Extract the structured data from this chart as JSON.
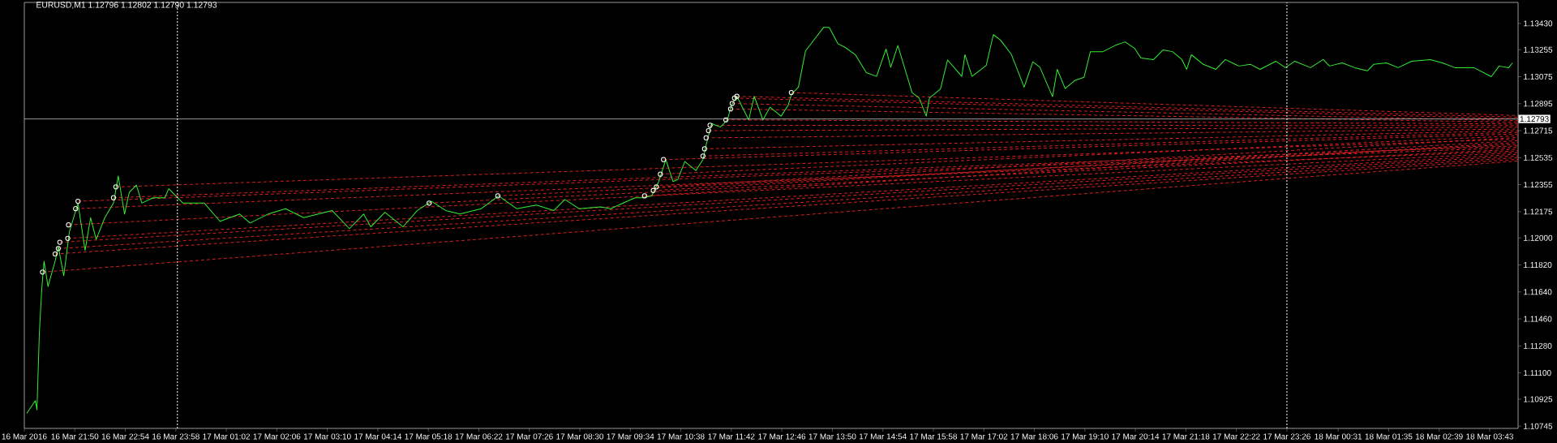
{
  "chart_data": {
    "type": "line",
    "title": "EURUSD,M1  1.12796 1.12802 1.12790 1.12793",
    "xlim": [
      "2016-03-16T20:46",
      "2016-03-18T04:19"
    ],
    "ylim": [
      1.1073,
      1.1357
    ],
    "xticks": [
      {
        "value": "2016-03-16T20:46",
        "label": "16 Mar 2016"
      },
      {
        "value": "2016-03-16T21:50",
        "label": "16 Mar 21:50"
      },
      {
        "value": "2016-03-16T22:54",
        "label": "16 Mar 22:54"
      },
      {
        "value": "2016-03-16T23:58",
        "label": "16 Mar 23:58"
      },
      {
        "value": "2016-03-17T01:02",
        "label": "17 Mar 01:02"
      },
      {
        "value": "2016-03-17T02:06",
        "label": "17 Mar 02:06"
      },
      {
        "value": "2016-03-17T03:10",
        "label": "17 Mar 03:10"
      },
      {
        "value": "2016-03-17T04:14",
        "label": "17 Mar 04:14"
      },
      {
        "value": "2016-03-17T05:18",
        "label": "17 Mar 05:18"
      },
      {
        "value": "2016-03-17T06:22",
        "label": "17 Mar 06:22"
      },
      {
        "value": "2016-03-17T07:26",
        "label": "17 Mar 07:26"
      },
      {
        "value": "2016-03-17T08:30",
        "label": "17 Mar 08:30"
      },
      {
        "value": "2016-03-17T09:34",
        "label": "17 Mar 09:34"
      },
      {
        "value": "2016-03-17T10:38",
        "label": "17 Mar 10:38"
      },
      {
        "value": "2016-03-17T11:42",
        "label": "17 Mar 11:42"
      },
      {
        "value": "2016-03-17T12:46",
        "label": "17 Mar 12:46"
      },
      {
        "value": "2016-03-17T13:50",
        "label": "17 Mar 13:50"
      },
      {
        "value": "2016-03-17T14:54",
        "label": "17 Mar 14:54"
      },
      {
        "value": "2016-03-17T15:58",
        "label": "17 Mar 15:58"
      },
      {
        "value": "2016-03-17T17:02",
        "label": "17 Mar 17:02"
      },
      {
        "value": "2016-03-17T18:06",
        "label": "17 Mar 18:06"
      },
      {
        "value": "2016-03-17T19:10",
        "label": "17 Mar 19:10"
      },
      {
        "value": "2016-03-17T20:14",
        "label": "17 Mar 20:14"
      },
      {
        "value": "2016-03-17T21:18",
        "label": "17 Mar 21:18"
      },
      {
        "value": "2016-03-17T22:22",
        "label": "17 Mar 22:22"
      },
      {
        "value": "2016-03-17T23:26",
        "label": "17 Mar 23:26"
      },
      {
        "value": "2016-03-18T00:31",
        "label": "18 Mar 00:31"
      },
      {
        "value": "2016-03-18T01:35",
        "label": "18 Mar 01:35"
      },
      {
        "value": "2016-03-18T02:39",
        "label": "18 Mar 02:39"
      },
      {
        "value": "2016-03-18T03:43",
        "label": "18 Mar 03:43"
      }
    ],
    "yticks": [
      1.10745,
      1.10925,
      {
        "value": 1.111,
        "label": "1.11100"
      },
      {
        "value": 1.1128,
        "label": "1.11280"
      },
      {
        "value": 1.1146,
        "label": "1.11460"
      },
      {
        "value": 1.1164,
        "label": "1.11640"
      },
      {
        "value": 1.1182,
        "label": "1.11820"
      },
      {
        "value": 1.12,
        "label": "1.12000"
      },
      1.12175,
      1.12355,
      1.12535,
      1.12715,
      1.12895,
      1.13075,
      1.13255,
      {
        "value": 1.1343,
        "label": "1.13430"
      }
    ],
    "marker": "none",
    "line_style": "solid",
    "ref_lines": [
      {
        "axis": "y",
        "value": 1.12793,
        "label": "1.12793",
        "color": "#c0c0c0",
        "line_style": "solid"
      },
      {
        "axis": "x",
        "value": "2016-03-17T00:00",
        "color": "#ffffff",
        "line_style": "dotted"
      },
      {
        "axis": "x",
        "value": "2016-03-17T23:26",
        "color": "#ffffff",
        "line_style": "dotted"
      }
    ],
    "series": [
      {
        "color": "#d42020",
        "line_style": "dashed",
        "x": [
          "2016-03-16T21:09",
          "2016-03-18T04:19"
        ],
        "values": [
          1.11772,
          1.12513
        ]
      },
      {
        "color": "#d42020",
        "line_style": "dashed",
        "x": [
          "2016-03-16T21:25",
          "2016-03-18T04:19"
        ],
        "values": [
          1.11893,
          1.12524
        ]
      },
      {
        "color": "#d42020",
        "line_style": "dashed",
        "x": [
          "2016-03-16T21:29",
          "2016-03-18T04:19"
        ],
        "values": [
          1.11929,
          1.12535
        ]
      },
      {
        "color": "#d42020",
        "line_style": "dashed",
        "x": [
          "2016-03-16T21:31",
          "2016-03-18T04:19"
        ],
        "values": [
          1.11971,
          1.12547
        ]
      },
      {
        "color": "#d42020",
        "line_style": "dashed",
        "x": [
          "2016-03-16T21:41",
          "2016-03-18T04:19"
        ],
        "values": [
          1.11997,
          1.12558
        ]
      },
      {
        "color": "#d42020",
        "line_style": "dashed",
        "x": [
          "2016-03-16T21:42",
          "2016-03-18T04:19"
        ],
        "values": [
          1.12087,
          1.12569
        ]
      },
      {
        "color": "#d42020",
        "line_style": "dashed",
        "x": [
          "2016-03-16T21:51",
          "2016-03-18T04:19"
        ],
        "values": [
          1.12195,
          1.1258
        ]
      },
      {
        "color": "#d42020",
        "line_style": "dashed",
        "x": [
          "2016-03-16T21:54",
          "2016-03-18T04:19"
        ],
        "values": [
          1.12244,
          1.12603
        ]
      },
      {
        "color": "#d42020",
        "line_style": "dashed",
        "x": [
          "2016-03-16T22:39",
          "2016-03-18T04:19"
        ],
        "values": [
          1.12268,
          1.12614
        ]
      },
      {
        "color": "#d42020",
        "line_style": "dashed",
        "x": [
          "2016-03-16T22:42",
          "2016-03-18T04:19"
        ],
        "values": [
          1.1234,
          1.12659
        ]
      },
      {
        "color": "#d42020",
        "line_style": "dashed",
        "x": [
          "2016-03-17T05:19",
          "2016-03-18T04:19"
        ],
        "values": [
          1.12232,
          1.12592
        ]
      },
      {
        "color": "#d42020",
        "line_style": "dashed",
        "x": [
          "2016-03-17T06:46",
          "2016-03-18T04:19"
        ],
        "values": [
          1.1228,
          1.12625
        ]
      },
      {
        "color": "#d42020",
        "line_style": "dashed",
        "x": [
          "2016-03-17T09:52",
          "2016-03-18T04:19"
        ],
        "values": [
          1.1228,
          1.12637
        ]
      },
      {
        "color": "#d42020",
        "line_style": "dashed",
        "x": [
          "2016-03-17T10:03",
          "2016-03-18T04:19"
        ],
        "values": [
          1.12316,
          1.12648
        ]
      },
      {
        "color": "#d42020",
        "line_style": "dashed",
        "x": [
          "2016-03-17T10:07",
          "2016-03-18T04:19"
        ],
        "values": [
          1.1234,
          1.1267
        ]
      },
      {
        "color": "#d42020",
        "line_style": "dashed",
        "x": [
          "2016-03-17T10:12",
          "2016-03-18T04:19"
        ],
        "values": [
          1.12425,
          1.12681
        ]
      },
      {
        "color": "#d42020",
        "line_style": "dashed",
        "x": [
          "2016-03-17T10:16",
          "2016-03-18T04:19"
        ],
        "values": [
          1.12522,
          1.12693
        ]
      },
      {
        "color": "#d42020",
        "line_style": "dashed",
        "x": [
          "2016-03-17T11:06",
          "2016-03-18T04:19"
        ],
        "values": [
          1.12546,
          1.12704
        ]
      },
      {
        "color": "#d42020",
        "line_style": "dashed",
        "x": [
          "2016-03-17T11:08",
          "2016-03-18T04:19"
        ],
        "values": [
          1.12594,
          1.12715
        ]
      },
      {
        "color": "#d42020",
        "line_style": "dashed",
        "x": [
          "2016-03-17T11:10",
          "2016-03-18T04:19"
        ],
        "values": [
          1.12667,
          1.12726
        ]
      },
      {
        "color": "#d42020",
        "line_style": "dashed",
        "x": [
          "2016-03-17T11:13",
          "2016-03-18T04:19"
        ],
        "values": [
          1.12715,
          1.12738
        ]
      },
      {
        "color": "#d42020",
        "line_style": "dashed",
        "x": [
          "2016-03-17T11:15",
          "2016-03-18T04:19"
        ],
        "values": [
          1.12751,
          1.12749
        ]
      },
      {
        "color": "#d42020",
        "line_style": "dashed",
        "x": [
          "2016-03-17T11:35",
          "2016-03-18T04:19"
        ],
        "values": [
          1.12787,
          1.1276
        ]
      },
      {
        "color": "#d42020",
        "line_style": "dashed",
        "x": [
          "2016-03-17T11:41",
          "2016-03-18T04:19"
        ],
        "values": [
          1.1286,
          1.12771
        ]
      },
      {
        "color": "#d42020",
        "line_style": "dashed",
        "x": [
          "2016-03-17T11:43",
          "2016-03-18T04:19"
        ],
        "values": [
          1.12896,
          1.12782
        ]
      },
      {
        "color": "#d42020",
        "line_style": "dashed",
        "x": [
          "2016-03-17T11:46",
          "2016-03-18T04:19"
        ],
        "values": [
          1.12932,
          1.12794
        ]
      },
      {
        "color": "#d42020",
        "line_style": "dashed",
        "x": [
          "2016-03-17T11:49",
          "2016-03-18T04:19"
        ],
        "values": [
          1.12944,
          1.12805
        ]
      },
      {
        "color": "#d42020",
        "line_style": "dashed",
        "x": [
          "2016-03-17T12:58",
          "2016-03-18T04:19"
        ],
        "values": [
          1.12969,
          1.12816
        ]
      },
      {
        "color": "#33ee33",
        "x": [
          "2016-03-16T20:49",
          "2016-03-16T21:00",
          "2016-03-16T21:02",
          "2016-03-16T21:05",
          "2016-03-16T21:08",
          "2016-03-16T21:11",
          "2016-03-16T21:16",
          "2016-03-16T21:25",
          "2016-03-16T21:29",
          "2016-03-16T21:36",
          "2016-03-16T21:43",
          "2016-03-16T21:54",
          "2016-03-16T22:03",
          "2016-03-16T22:10",
          "2016-03-16T22:17",
          "2016-03-16T22:28",
          "2016-03-16T22:39",
          "2016-03-16T22:45",
          "2016-03-16T22:53",
          "2016-03-16T22:59",
          "2016-03-16T23:08",
          "2016-03-16T23:15",
          "2016-03-16T23:29",
          "2016-03-16T23:44",
          "2016-03-16T23:49",
          "2016-03-17T00:07",
          "2016-03-17T00:34",
          "2016-03-17T00:54",
          "2016-03-17T01:19",
          "2016-03-17T01:32",
          "2016-03-17T01:55",
          "2016-03-17T02:17",
          "2016-03-17T02:40",
          "2016-03-17T03:16",
          "2016-03-17T03:38",
          "2016-03-17T03:56",
          "2016-03-17T04:05",
          "2016-03-17T04:23",
          "2016-03-17T04:46",
          "2016-03-17T05:04",
          "2016-03-17T05:22",
          "2016-03-17T05:40",
          "2016-03-17T05:58",
          "2016-03-17T06:25",
          "2016-03-17T06:47",
          "2016-03-17T07:10",
          "2016-03-17T07:35",
          "2016-03-17T07:57",
          "2016-03-17T08:11",
          "2016-03-17T08:29",
          "2016-03-17T08:56",
          "2016-03-17T09:09",
          "2016-03-17T09:40",
          "2016-03-17T09:49",
          "2016-03-17T10:01",
          "2016-03-17T10:10",
          "2016-03-17T10:19",
          "2016-03-17T10:28",
          "2016-03-17T10:34",
          "2016-03-17T10:43",
          "2016-03-17T10:57",
          "2016-03-17T11:06",
          "2016-03-17T11:10",
          "2016-03-17T11:17",
          "2016-03-17T11:28",
          "2016-03-17T11:37",
          "2016-03-17T11:42",
          "2016-03-17T11:49",
          "2016-03-17T12:04",
          "2016-03-17T12:11",
          "2016-03-17T12:22",
          "2016-03-17T12:31",
          "2016-03-17T12:45",
          "2016-03-17T12:54",
          "2016-03-17T12:58",
          "2016-03-17T13:07",
          "2016-03-17T13:16",
          "2016-03-17T13:30",
          "2016-03-17T13:39",
          "2016-03-17T13:46",
          "2016-03-17T13:57",
          "2016-03-17T14:06",
          "2016-03-17T14:19",
          "2016-03-17T14:33",
          "2016-03-17T14:46",
          "2016-03-17T14:58",
          "2016-03-17T15:04",
          "2016-03-17T15:13",
          "2016-03-17T15:22",
          "2016-03-17T15:31",
          "2016-03-17T15:40",
          "2016-03-17T15:49",
          "2016-03-17T15:53",
          "2016-03-17T16:07",
          "2016-03-17T16:16",
          "2016-03-17T16:34",
          "2016-03-17T16:38",
          "2016-03-17T16:47",
          "2016-03-17T17:05",
          "2016-03-17T17:14",
          "2016-03-17T17:23",
          "2016-03-17T17:37",
          "2016-03-17T17:53",
          "2016-03-17T18:04",
          "2016-03-17T18:13",
          "2016-03-17T18:29",
          "2016-03-17T18:35",
          "2016-03-17T18:45",
          "2016-03-17T18:57",
          "2016-03-17T19:09",
          "2016-03-17T19:17",
          "2016-03-17T19:33",
          "2016-03-17T19:49",
          "2016-03-17T20:01",
          "2016-03-17T20:13",
          "2016-03-17T20:21",
          "2016-03-17T20:37",
          "2016-03-17T20:49",
          "2016-03-17T21:01",
          "2016-03-17T21:13",
          "2016-03-17T21:19",
          "2016-03-17T21:25",
          "2016-03-17T21:40",
          "2016-03-17T21:56",
          "2016-03-17T22:08",
          "2016-03-17T22:25",
          "2016-03-17T22:40",
          "2016-03-17T22:52",
          "2016-03-17T23:12",
          "2016-03-17T23:24",
          "2016-03-17T23:36",
          "2016-03-17T23:56",
          "2016-03-18T00:12",
          "2016-03-18T00:20",
          "2016-03-18T00:36",
          "2016-03-18T00:52",
          "2016-03-18T01:08",
          "2016-03-18T01:16",
          "2016-03-18T01:32",
          "2016-03-18T01:47",
          "2016-03-18T02:04",
          "2016-03-18T02:28",
          "2016-03-18T02:43",
          "2016-03-18T02:59",
          "2016-03-18T03:23",
          "2016-03-18T03:45",
          "2016-03-18T03:55",
          "2016-03-18T04:07",
          "2016-03-18T04:12"
        ],
        "values": [
          1.1083,
          1.10915,
          1.10854,
          1.11362,
          1.11652,
          1.11845,
          1.11676,
          1.11845,
          1.11942,
          1.11748,
          1.12038,
          1.12232,
          1.11917,
          1.12135,
          1.1199,
          1.12135,
          1.12232,
          1.12413,
          1.12159,
          1.12304,
          1.12352,
          1.12232,
          1.12268,
          1.12268,
          1.12328,
          1.12232,
          1.12232,
          1.12111,
          1.12159,
          1.12099,
          1.12159,
          1.12195,
          1.12135,
          1.12183,
          1.12062,
          1.12159,
          1.12074,
          1.12171,
          1.12074,
          1.12183,
          1.12244,
          1.12183,
          1.12159,
          1.12195,
          1.1228,
          1.12195,
          1.12219,
          1.12183,
          1.12256,
          1.12195,
          1.12207,
          1.12195,
          1.12268,
          1.12268,
          1.1228,
          1.12376,
          1.12522,
          1.12376,
          1.12389,
          1.12509,
          1.12449,
          1.12522,
          1.12618,
          1.12763,
          1.12739,
          1.12787,
          1.12884,
          1.12944,
          1.12787,
          1.12944,
          1.12787,
          1.12872,
          1.12812,
          1.12884,
          1.12957,
          1.13005,
          1.13247,
          1.13343,
          1.13404,
          1.13404,
          1.13295,
          1.13271,
          1.13222,
          1.13102,
          1.13077,
          1.13259,
          1.13138,
          1.13283,
          1.13126,
          1.12969,
          1.12932,
          1.12812,
          1.12932,
          1.12993,
          1.13186,
          1.13077,
          1.13222,
          1.13077,
          1.1315,
          1.13355,
          1.13319,
          1.13222,
          1.13005,
          1.13174,
          1.13138,
          1.12942,
          1.13124,
          1.12996,
          1.13049,
          1.13071,
          1.13242,
          1.13242,
          1.13285,
          1.13307,
          1.13264,
          1.13199,
          1.13189,
          1.13253,
          1.13242,
          1.13189,
          1.13124,
          1.13221,
          1.13157,
          1.13124,
          1.13189,
          1.13146,
          1.13157,
          1.13124,
          1.13178,
          1.13135,
          1.13178,
          1.13135,
          1.13189,
          1.13146,
          1.13167,
          1.13135,
          1.13114,
          1.13157,
          1.13167,
          1.13135,
          1.13178,
          1.13189,
          1.13167,
          1.13135,
          1.13135,
          1.13075,
          1.13146,
          1.13135,
          1.13167
        ]
      },
      {
        "type": "scatter",
        "color": "#ffffff",
        "marker": "circle",
        "x": [
          "2016-03-16T21:09",
          "2016-03-16T21:25",
          "2016-03-16T21:29",
          "2016-03-16T21:31",
          "2016-03-16T21:41",
          "2016-03-16T21:42",
          "2016-03-16T21:51",
          "2016-03-16T21:54",
          "2016-03-16T22:39",
          "2016-03-16T22:42",
          "2016-03-17T05:19",
          "2016-03-17T06:46",
          "2016-03-17T09:52",
          "2016-03-17T10:03",
          "2016-03-17T10:07",
          "2016-03-17T10:12",
          "2016-03-17T10:16",
          "2016-03-17T11:06",
          "2016-03-17T11:08",
          "2016-03-17T11:10",
          "2016-03-17T11:13",
          "2016-03-17T11:15",
          "2016-03-17T11:35",
          "2016-03-17T11:41",
          "2016-03-17T11:43",
          "2016-03-17T11:46",
          "2016-03-17T11:49",
          "2016-03-17T12:58"
        ],
        "values": [
          1.11772,
          1.11893,
          1.11929,
          1.11971,
          1.11997,
          1.12087,
          1.12195,
          1.12244,
          1.12268,
          1.1234,
          1.12232,
          1.1228,
          1.1228,
          1.12316,
          1.1234,
          1.12425,
          1.12522,
          1.12546,
          1.12594,
          1.12667,
          1.12715,
          1.12751,
          1.12787,
          1.1286,
          1.12896,
          1.12932,
          1.12944,
          1.12969
        ]
      }
    ]
  }
}
